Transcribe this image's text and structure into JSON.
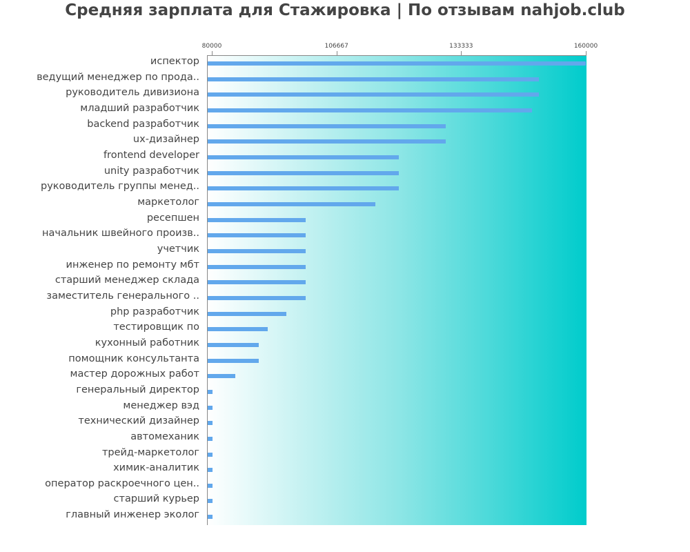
{
  "chart_data": {
    "type": "bar",
    "orientation": "horizontal",
    "title": "Средняя зарплата для Стажировка | По отзывам nahjob.club",
    "xlabel": "",
    "ylabel": "",
    "xlim": [
      80000,
      160000
    ],
    "x_ticks": [
      "80000",
      "106667",
      "133333",
      "160000"
    ],
    "x_tick_values": [
      80000,
      106667,
      133333,
      160000
    ],
    "grid": false,
    "legend": null,
    "bar_color": "#62a8ec",
    "background_gradient": [
      "#ffffff",
      "#00cccc"
    ],
    "categories": [
      "испектор",
      "ведущий менеджер по прода..",
      "руководитель дивизиона",
      "младший разработчик",
      "backend разработчик",
      "ux-дизайнер",
      "frontend developer",
      "unity разработчик",
      "руководитель группы менед..",
      "маркетолог",
      "ресепшен",
      "начальник швейного произв..",
      "учетчик",
      "инженер по ремонту мбт",
      "старший менеджер склада",
      "заместитель генерального ..",
      "php разработчик",
      "тестировщик по",
      "кухонный работник",
      "помощник консультанта",
      "мастер дорожных работ",
      "генеральный директор",
      "менеджер вэд",
      "технический дизайнер",
      "автомеханик",
      "трейд-маркетолог",
      "химик-аналитик",
      "оператор раскроечного цен..",
      "старший курьер",
      "главный инженер эколог"
    ],
    "values": [
      160000,
      150000,
      150000,
      148500,
      130000,
      130000,
      120000,
      120000,
      120000,
      115000,
      100000,
      100000,
      100000,
      100000,
      100000,
      100000,
      96000,
      92000,
      90000,
      90000,
      85000,
      80000,
      80000,
      80000,
      80000,
      80000,
      80000,
      80000,
      80000,
      80000
    ]
  }
}
